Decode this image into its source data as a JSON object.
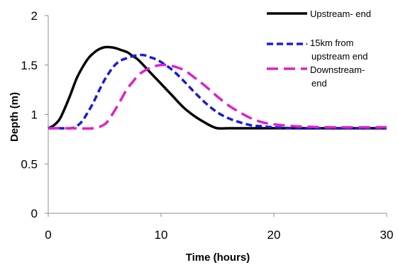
{
  "chart_data": {
    "type": "line",
    "title": "",
    "xlabel": "Time (hours)",
    "ylabel": "Depth (m)",
    "xlim": [
      0,
      30
    ],
    "ylim": [
      0,
      2
    ],
    "xticks": [
      "0",
      "10",
      "20",
      "30"
    ],
    "yticks": [
      "0",
      "0.5",
      "1",
      "1.5",
      "2"
    ],
    "grid": false,
    "legend_position": "top-right",
    "series": [
      {
        "name": "Upstream- end",
        "color": "#000000",
        "dash": "solid",
        "x": [
          0,
          0.5,
          1,
          1.5,
          2,
          2.5,
          3,
          3.5,
          4,
          4.5,
          5,
          5.5,
          6,
          6.5,
          7,
          7.5,
          8,
          9,
          10,
          11,
          12,
          13,
          14,
          14.5,
          15,
          16,
          17,
          18,
          20,
          25,
          30
        ],
        "y": [
          0.86,
          0.89,
          0.95,
          1.07,
          1.21,
          1.36,
          1.47,
          1.56,
          1.62,
          1.66,
          1.68,
          1.68,
          1.67,
          1.65,
          1.63,
          1.59,
          1.55,
          1.43,
          1.31,
          1.19,
          1.07,
          0.98,
          0.91,
          0.88,
          0.86,
          0.86,
          0.86,
          0.86,
          0.86,
          0.86,
          0.86
        ]
      },
      {
        "name": "15km from upstream end",
        "color": "#1a1adb",
        "dash": "short-dash",
        "x": [
          0,
          1,
          2,
          2.5,
          3,
          3.5,
          4,
          4.5,
          5,
          5.5,
          6,
          6.5,
          7,
          7.5,
          8,
          8.5,
          9,
          9.5,
          10,
          11,
          12,
          13,
          14,
          15,
          16,
          17,
          18,
          19,
          20,
          22,
          25,
          30
        ],
        "y": [
          0.86,
          0.86,
          0.86,
          0.88,
          0.93,
          1.02,
          1.12,
          1.24,
          1.35,
          1.44,
          1.51,
          1.55,
          1.57,
          1.59,
          1.6,
          1.6,
          1.58,
          1.56,
          1.53,
          1.45,
          1.34,
          1.22,
          1.11,
          1.02,
          0.96,
          0.92,
          0.89,
          0.88,
          0.87,
          0.86,
          0.86,
          0.86
        ]
      },
      {
        "name": "Downstream- end",
        "color": "#e020c8",
        "dash": "long-dash",
        "x": [
          0,
          2,
          4,
          5,
          5.5,
          6,
          6.5,
          7,
          7.5,
          8,
          8.5,
          9,
          9.5,
          10,
          10.5,
          11,
          12,
          13,
          14,
          15,
          16,
          17,
          18,
          19,
          20,
          22,
          25,
          30
        ],
        "y": [
          0.86,
          0.86,
          0.86,
          0.9,
          0.97,
          1.06,
          1.16,
          1.26,
          1.33,
          1.4,
          1.44,
          1.47,
          1.49,
          1.5,
          1.5,
          1.49,
          1.45,
          1.37,
          1.28,
          1.18,
          1.09,
          1.02,
          0.96,
          0.92,
          0.9,
          0.88,
          0.87,
          0.87
        ]
      }
    ]
  }
}
